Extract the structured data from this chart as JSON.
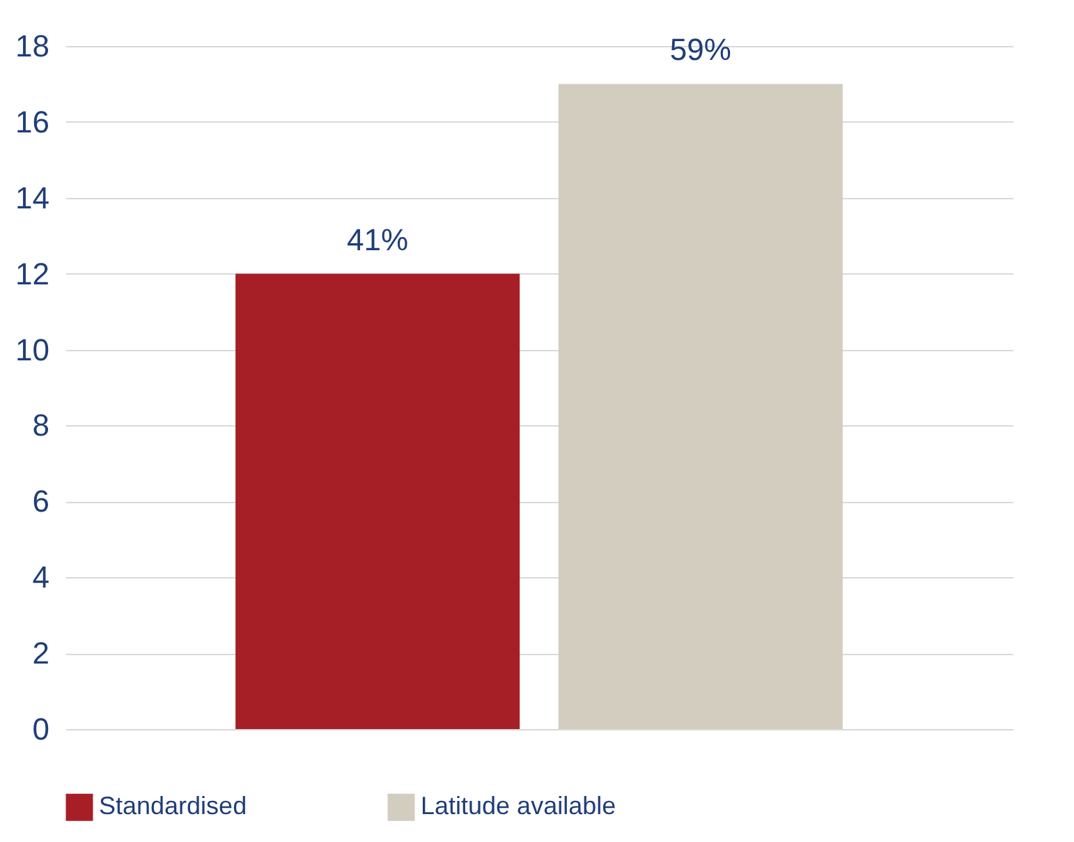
{
  "chart_data": {
    "type": "bar",
    "categories": [
      null
    ],
    "series": [
      {
        "name": "Standardised",
        "color": "#a71f26",
        "values": [
          12
        ]
      },
      {
        "name": "Latitude available",
        "color": "#d3cdbf",
        "values": [
          17
        ]
      }
    ],
    "annotations": [
      {
        "text": "41%",
        "y": 12
      },
      {
        "text": "59%",
        "y": 17
      }
    ],
    "ylim": [
      0,
      18
    ],
    "yticks": [
      0,
      2,
      4,
      6,
      8,
      10,
      12,
      14,
      16,
      18
    ],
    "grid": "y",
    "legend": "bottom"
  }
}
